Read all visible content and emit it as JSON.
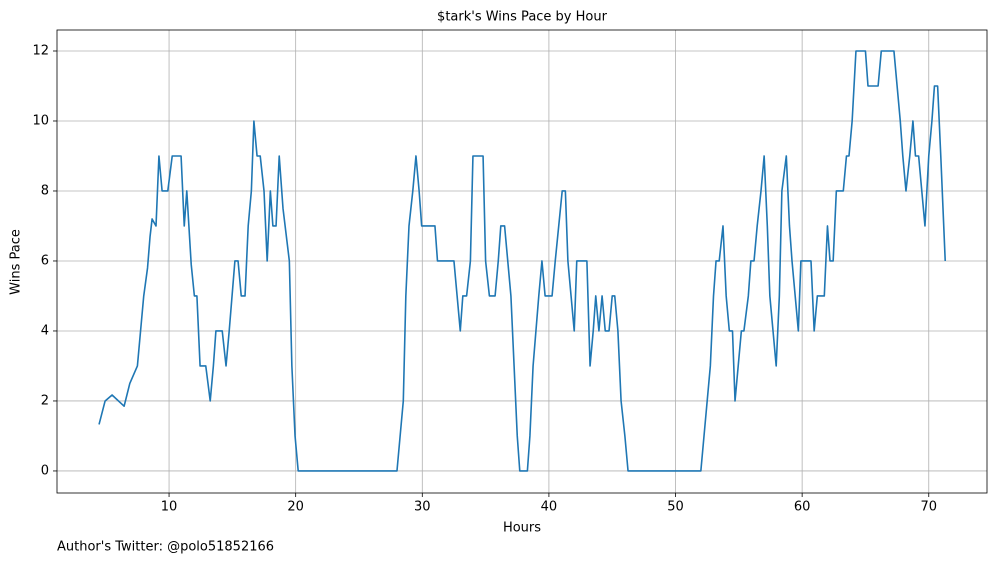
{
  "chart_data": {
    "type": "line",
    "title": "$tark's Wins Pace by Hour",
    "x_label": "Hours",
    "y_label": "Wins Pace",
    "footer": "Author's Twitter: @polo51852166",
    "xlim": [
      1.15,
      74.6
    ],
    "ylim": [
      -0.63,
      12.6
    ],
    "xticks": [
      10,
      20,
      30,
      40,
      50,
      60,
      70
    ],
    "yticks": [
      0,
      2,
      4,
      6,
      8,
      10,
      12
    ],
    "grid": true,
    "x": [
      4.47,
      4.95,
      5.5,
      6.45,
      6.9,
      7.5,
      8.0,
      8.3,
      8.5,
      8.66,
      8.97,
      9.2,
      9.45,
      9.9,
      10.25,
      10.95,
      11.2,
      11.4,
      11.75,
      12.0,
      12.2,
      12.45,
      12.9,
      13.25,
      13.5,
      13.7,
      14.2,
      14.5,
      14.75,
      15.2,
      15.45,
      15.7,
      16.0,
      16.25,
      16.5,
      16.7,
      16.95,
      17.2,
      17.5,
      17.75,
      18.0,
      18.2,
      18.45,
      18.7,
      19.0,
      19.5,
      19.7,
      19.95,
      20.2,
      28.0,
      28.25,
      28.5,
      28.7,
      28.95,
      29.25,
      29.5,
      29.75,
      29.95,
      31.0,
      31.2,
      32.5,
      32.75,
      33.0,
      33.2,
      33.5,
      33.8,
      34.0,
      34.8,
      35.0,
      35.3,
      35.75,
      36.0,
      36.2,
      36.5,
      37.0,
      37.25,
      37.5,
      37.7,
      38.3,
      38.5,
      38.75,
      39.2,
      39.45,
      39.7,
      40.25,
      40.5,
      41.05,
      41.3,
      41.5,
      41.75,
      42.0,
      42.2,
      43.0,
      43.25,
      43.5,
      43.7,
      43.95,
      44.2,
      44.45,
      44.75,
      45.0,
      45.2,
      45.45,
      45.7,
      46.0,
      46.25,
      52.0,
      52.25,
      52.5,
      52.75,
      53.0,
      53.2,
      53.45,
      53.75,
      54.0,
      54.25,
      54.5,
      54.7,
      54.95,
      55.2,
      55.4,
      55.75,
      55.95,
      56.2,
      56.45,
      56.75,
      57.0,
      57.25,
      57.45,
      57.7,
      57.95,
      58.2,
      58.4,
      58.75,
      59.0,
      59.2,
      59.45,
      59.7,
      59.9,
      60.7,
      60.95,
      61.2,
      61.75,
      62.0,
      62.2,
      62.45,
      62.7,
      63.25,
      63.5,
      63.7,
      63.95,
      64.25,
      65.0,
      65.2,
      66.0,
      66.25,
      67.25,
      67.5,
      67.75,
      67.95,
      68.2,
      68.5,
      68.75,
      68.95,
      69.2,
      69.45,
      69.7,
      70.0,
      70.25,
      70.45,
      70.7,
      70.95,
      71.3
    ],
    "series": [
      {
        "name": "Wins Pace",
        "color": "#1f77b4",
        "values": [
          1.33,
          2.0,
          2.17,
          1.85,
          2.5,
          3.0,
          5,
          5.8,
          6.7,
          7.2,
          7.0,
          9,
          8,
          8,
          9,
          9,
          7,
          8,
          5.9,
          5,
          5,
          3,
          3,
          2,
          3,
          4,
          4,
          3,
          4,
          6,
          6,
          5,
          5,
          7,
          8,
          10,
          9,
          9,
          8,
          6,
          8,
          7,
          7,
          9,
          7.5,
          6,
          3,
          1,
          0,
          0,
          1,
          2,
          5,
          7,
          8,
          9,
          8,
          7,
          7,
          6,
          6,
          5,
          4,
          5,
          5,
          6,
          9,
          9,
          6,
          5,
          5,
          6,
          7,
          7,
          5,
          3,
          1,
          0,
          0,
          1,
          3,
          5,
          6,
          5,
          5,
          6,
          8,
          8,
          6,
          5,
          4,
          6,
          6,
          3,
          4,
          5,
          4,
          5,
          4,
          4,
          5,
          5,
          4,
          2,
          1,
          0,
          0,
          1,
          2,
          3,
          5,
          6,
          6,
          7,
          5,
          4,
          4,
          2,
          3,
          4,
          4,
          5,
          6,
          6,
          7,
          8,
          9,
          7,
          5,
          4,
          3,
          5,
          8,
          9,
          7,
          6,
          5,
          4,
          6,
          6,
          4,
          5,
          5,
          7,
          6,
          6,
          8,
          8,
          9,
          9,
          10,
          12,
          12,
          11,
          11,
          12,
          12,
          11,
          10,
          9,
          8,
          9,
          10,
          9,
          9,
          8,
          7,
          9,
          10,
          11,
          11,
          9,
          6
        ]
      }
    ]
  }
}
